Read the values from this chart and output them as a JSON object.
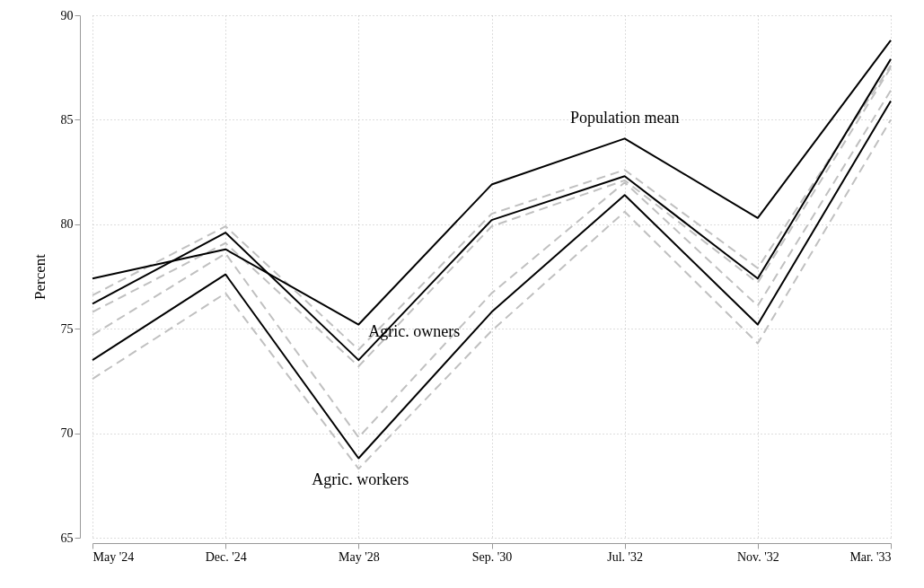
{
  "chart_data": {
    "type": "line",
    "ylabel": "Percent",
    "categories": [
      "May '24",
      "Dec. '24",
      "May '28",
      "Sep. '30",
      "Jul. '32",
      "Nov. '32",
      "Mar. '33"
    ],
    "ylim": [
      65,
      90
    ],
    "yticks": [
      65,
      70,
      75,
      80,
      85,
      90
    ],
    "grid": true,
    "legend": false,
    "series": [
      {
        "color": "#c0c0c0",
        "line_style": "dashed",
        "values": [
          76.6,
          79.9,
          74.0,
          80.5,
          82.6,
          77.9,
          87.6
        ]
      },
      {
        "color": "#c0c0c0",
        "line_style": "dashed",
        "values": [
          75.8,
          79.1,
          73.2,
          79.9,
          82.1,
          77.2,
          87.5
        ]
      },
      {
        "color": "#c0c0c0",
        "line_style": "dashed",
        "values": [
          74.7,
          78.6,
          69.8,
          76.7,
          82.0,
          76.1,
          86.4
        ]
      },
      {
        "color": "#c0c0c0",
        "line_style": "dashed",
        "values": [
          72.6,
          76.7,
          68.3,
          74.9,
          80.6,
          74.3,
          85.0
        ]
      },
      {
        "name": "Population mean",
        "color": "#000000",
        "line_style": "solid",
        "values": [
          77.4,
          78.8,
          75.2,
          81.9,
          84.1,
          80.3,
          88.8
        ]
      },
      {
        "name": "Agric. owners",
        "color": "#000000",
        "line_style": "solid",
        "values": [
          76.2,
          79.6,
          73.5,
          80.2,
          82.3,
          77.4,
          87.9
        ]
      },
      {
        "name": "Agric. workers",
        "color": "#000000",
        "line_style": "solid",
        "values": [
          73.5,
          77.6,
          68.8,
          75.8,
          81.4,
          75.2,
          85.9
        ]
      }
    ]
  }
}
